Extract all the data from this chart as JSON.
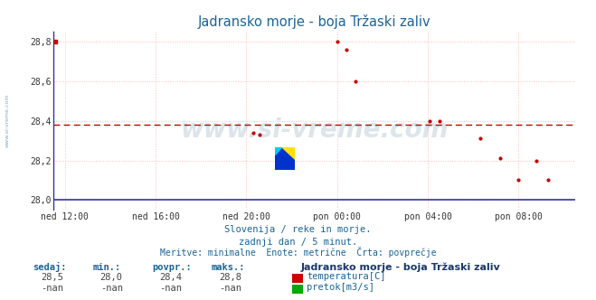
{
  "title": "Jadransko morje - boja Tržaski zaliv",
  "title_color": "#1a6496",
  "bg_color": "#ffffff",
  "plot_bg_color": "#ffffff",
  "yticks": [
    28.0,
    28.2,
    28.4,
    28.6,
    28.8
  ],
  "ylim": [
    27.95,
    28.85
  ],
  "xtick_labels": [
    "ned 12:00",
    "ned 16:00",
    "ned 20:00",
    "pon 00:00",
    "pon 04:00",
    "pon 08:00"
  ],
  "xtick_positions": [
    0,
    4,
    8,
    12,
    16,
    20
  ],
  "xlim": [
    -0.5,
    22.5
  ],
  "avg_line_y": 28.38,
  "avg_line_color": "#cc0000",
  "grid_color": "#ffbbbb",
  "axis_color": "#3333aa",
  "temp_data_x": [
    8.3,
    8.6,
    12.0,
    12.4,
    12.8,
    16.1,
    16.5,
    18.3,
    19.2,
    20.0,
    20.8,
    21.3
  ],
  "temp_data_y": [
    28.34,
    28.33,
    28.8,
    28.76,
    28.6,
    28.4,
    28.4,
    28.31,
    28.21,
    28.1,
    28.2,
    28.1
  ],
  "temp_marker_color": "#cc0000",
  "temp_marker_size": 2.0,
  "watermark_text": "www.si-vreme.com",
  "watermark_color": "#1a5276",
  "watermark_alpha": 0.15,
  "subtitle1": "Slovenija / reke in morje.",
  "subtitle2": "zadnji dan / 5 minut.",
  "subtitle3": "Meritve: minimalne  Enote: metrične  Črta: povprečje",
  "subtitle_color": "#1a6496",
  "legend_title": "Jadransko morje - boja Tržaski zaliv",
  "legend_title_color": "#1a3a6a",
  "stats_headers": [
    "sedaj:",
    "min.:",
    "povpr.:",
    "maks.:"
  ],
  "stats_values_temp": [
    "28,5",
    "28,0",
    "28,4",
    "28,8"
  ],
  "stats_values_flow": [
    "-nan",
    "-nan",
    "-nan",
    "-nan"
  ],
  "stats_color": "#1a6496",
  "temp_legend_color": "#cc0000",
  "flow_legend_color": "#00aa00",
  "sidebar_text": "www.si-vreme.com",
  "sidebar_color": "#1a6496"
}
